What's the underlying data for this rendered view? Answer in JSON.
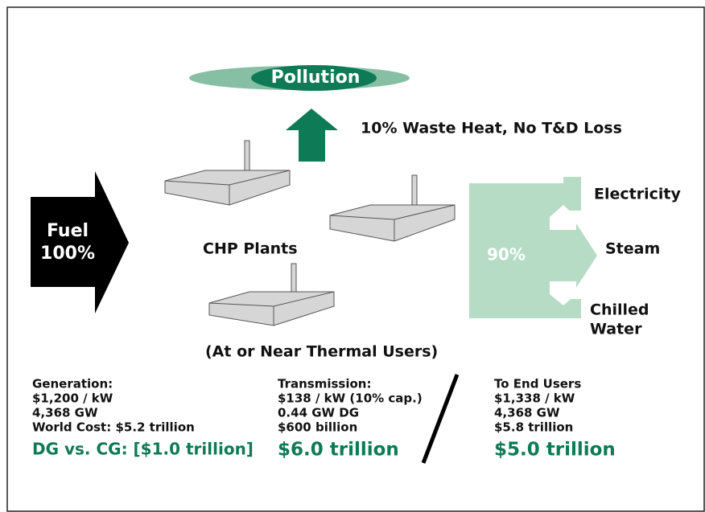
{
  "cloud": {
    "label": "Pollution"
  },
  "waste_heat": {
    "label": "10% Waste Heat, No T&D Loss"
  },
  "fuel": {
    "lines": [
      "Fuel",
      "100%"
    ]
  },
  "plants": {
    "label": "CHP Plants",
    "note": "(At or Near Thermal Users)"
  },
  "output": {
    "percent": "90%",
    "targets": [
      {
        "lines": [
          "Electricity"
        ]
      },
      {
        "lines": [
          "Steam"
        ]
      },
      {
        "lines": [
          "Chilled",
          "Water"
        ]
      }
    ]
  },
  "columns": [
    {
      "lines": [
        "Generation:",
        "$1,200 / kW",
        "4,368 GW",
        "World Cost: $5.2 trillion"
      ],
      "total": "DG vs. CG: [$1.0 trillion]"
    },
    {
      "lines": [
        "Transmission:",
        "$138 / kW (10% cap.)",
        "0.44 GW DG",
        "$600 billion"
      ],
      "total": "$6.0 trillion"
    },
    {
      "lines": [
        "To End Users",
        "$1,338 / kW",
        "4,368 GW",
        "$5.8 trillion"
      ],
      "total": "$5.0 trillion"
    }
  ]
}
